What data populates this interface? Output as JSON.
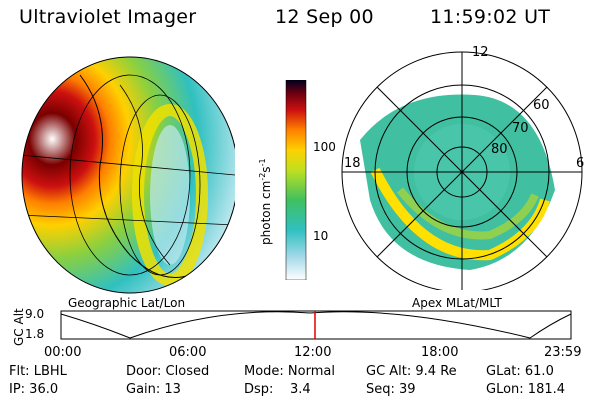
{
  "header": {
    "instrument": "Ultraviolet Imager",
    "date": "12 Sep 00",
    "time": "11:59:02 UT"
  },
  "colorbar": {
    "unit_label": "photon cm",
    "unit_exp1": "-2",
    "unit_mid": "s",
    "unit_exp2": "-1",
    "ticks": [
      "100",
      "10"
    ]
  },
  "left_panel": {
    "caption": "Geographic Lat/Lon"
  },
  "right_panel": {
    "caption": "Apex MLat/MLT",
    "mlt_labels": {
      "top": "12",
      "left": "18",
      "right": "6"
    },
    "lat_labels": [
      "60",
      "70",
      "80"
    ]
  },
  "altitude_plot": {
    "label": "GC Alt",
    "ymax": "9.0",
    "ymin": "1.8",
    "x_ticks": [
      "00:00",
      "06:00",
      "12:00",
      "18:00",
      "23:59"
    ],
    "marker_color": "#e00000"
  },
  "status": {
    "row1": {
      "flt": "Flt: LBHL",
      "door": "Door: Closed",
      "mode": "Mode: Normal",
      "gcalt": "GC Alt: 9.4 Re",
      "glat": "GLat:  61.0"
    },
    "row2": {
      "ip": "IP: 36.0",
      "gain": "Gain: 13",
      "dsp": "Dsp:    3.4",
      "seq": "Seq: 39",
      "glon": "GLon: 181.4"
    }
  }
}
